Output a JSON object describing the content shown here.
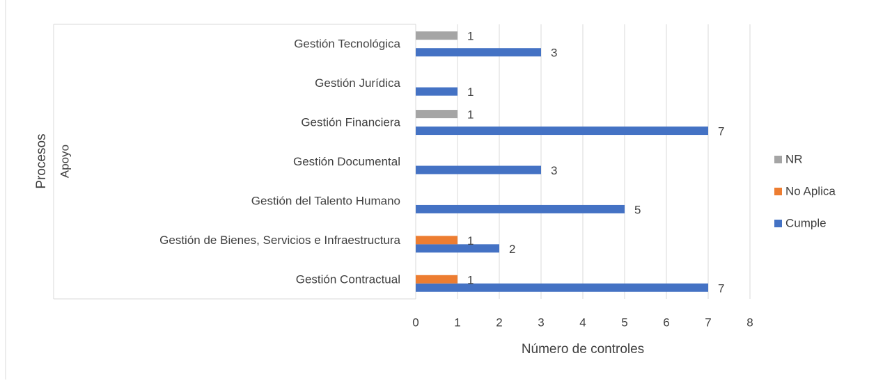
{
  "chart_data": {
    "type": "bar",
    "orientation": "horizontal",
    "x_label": "Número de controles",
    "y_label": "Procesos",
    "group_label": "Apoyo",
    "categories": [
      "Gestión Contractual",
      "Gestión de Bienes, Servicios e Infraestructura",
      "Gestión del Talento Humano",
      "Gestión Documental",
      "Gestión Financiera",
      "Gestión Jurídica",
      "Gestión Tecnológica"
    ],
    "series": [
      {
        "name": "Cumple",
        "color": "#4472c4",
        "values": [
          7,
          2,
          5,
          3,
          7,
          1,
          3
        ]
      },
      {
        "name": "No Aplica",
        "color": "#ed7d31",
        "values": [
          1,
          1,
          null,
          null,
          null,
          null,
          null
        ]
      },
      {
        "name": "NR",
        "color": "#a5a5a5",
        "values": [
          null,
          null,
          null,
          null,
          1,
          null,
          1
        ]
      }
    ],
    "xlim": [
      0,
      8
    ],
    "xticks": [
      0,
      1,
      2,
      3,
      4,
      5,
      6,
      7,
      8
    ],
    "grid": true,
    "legend": "right"
  }
}
